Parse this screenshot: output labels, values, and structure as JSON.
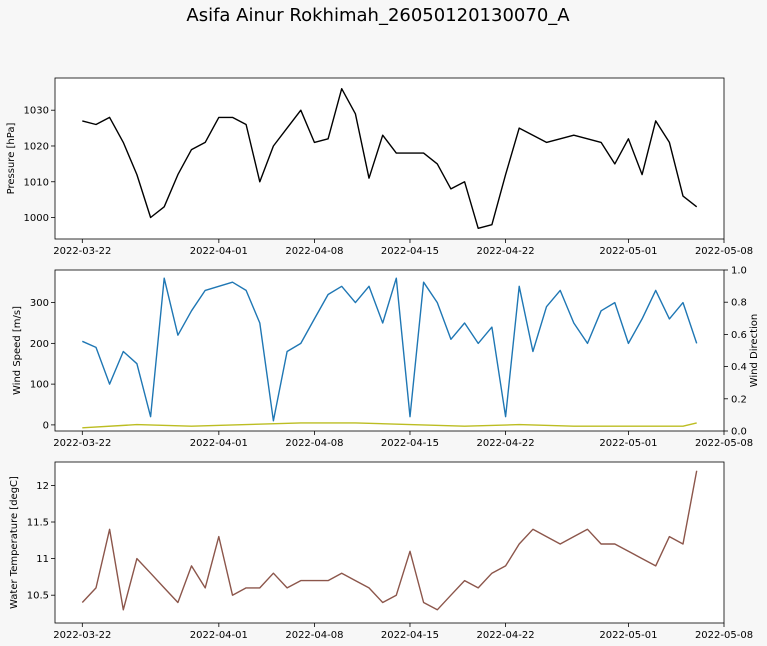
{
  "figure": {
    "title": "Asifa Ainur Rokhimah_26050120130070_A"
  },
  "chart_data": [
    {
      "type": "line",
      "ylabel": "Pressure [hPa]",
      "xlabel": "",
      "xlim": [
        "2022-03-20",
        "2022-05-08"
      ],
      "ylim": [
        994,
        1039
      ],
      "xticks": [
        "2022-03-22",
        "2022-04-01",
        "2022-04-08",
        "2022-04-15",
        "2022-04-22",
        "2022-05-01",
        "2022-05-08"
      ],
      "yticks": [
        1000,
        1010,
        1020,
        1030
      ],
      "grid": false,
      "series": [
        {
          "color": "#000000",
          "x": [
            "2022-03-22",
            "2022-03-23",
            "2022-03-24",
            "2022-03-25",
            "2022-03-26",
            "2022-03-27",
            "2022-03-28",
            "2022-03-29",
            "2022-03-30",
            "2022-03-31",
            "2022-04-01",
            "2022-04-02",
            "2022-04-03",
            "2022-04-04",
            "2022-04-05",
            "2022-04-06",
            "2022-04-07",
            "2022-04-08",
            "2022-04-09",
            "2022-04-10",
            "2022-04-11",
            "2022-04-12",
            "2022-04-13",
            "2022-04-14",
            "2022-04-15",
            "2022-04-16",
            "2022-04-17",
            "2022-04-18",
            "2022-04-19",
            "2022-04-20",
            "2022-04-21",
            "2022-04-22",
            "2022-04-23",
            "2022-04-24",
            "2022-04-25",
            "2022-04-26",
            "2022-04-27",
            "2022-04-28",
            "2022-04-29",
            "2022-04-30",
            "2022-05-01",
            "2022-05-02",
            "2022-05-03",
            "2022-05-04",
            "2022-05-05",
            "2022-05-06"
          ],
          "y": [
            1027,
            1026,
            1028,
            1021,
            1012,
            1000,
            1003,
            1012,
            1019,
            1021,
            1028,
            1028,
            1026,
            1010,
            1020,
            1025,
            1030,
            1021,
            1022,
            1036,
            1029,
            1011,
            1023,
            1018,
            1018,
            1018,
            1015,
            1008,
            1010,
            997,
            998,
            1012,
            1025,
            1023,
            1021,
            1022,
            1023,
            1022,
            1021,
            1015,
            1022,
            1012,
            1027,
            1021,
            1006,
            1003
          ]
        }
      ]
    },
    {
      "type": "line",
      "ylabel": "Wind Speed [m/s]",
      "y2label": "Wind Direction",
      "xlabel": "",
      "xlim": [
        "2022-03-20",
        "2022-05-08"
      ],
      "ylim": [
        -15,
        380
      ],
      "y2lim": [
        0,
        1
      ],
      "xticks": [
        "2022-03-22",
        "2022-04-01",
        "2022-04-08",
        "2022-04-15",
        "2022-04-22",
        "2022-05-01",
        "2022-05-08"
      ],
      "yticks": [
        0,
        100,
        200,
        300
      ],
      "y2ticks": [
        0.0,
        0.2,
        0.4,
        0.6,
        0.8,
        1.0
      ],
      "grid": false,
      "series": [
        {
          "color": "#1f77b4",
          "x": [
            "2022-03-22",
            "2022-03-23",
            "2022-03-24",
            "2022-03-25",
            "2022-03-26",
            "2022-03-27",
            "2022-03-28",
            "2022-03-29",
            "2022-03-30",
            "2022-03-31",
            "2022-04-01",
            "2022-04-02",
            "2022-04-03",
            "2022-04-04",
            "2022-04-05",
            "2022-04-06",
            "2022-04-07",
            "2022-04-08",
            "2022-04-09",
            "2022-04-10",
            "2022-04-11",
            "2022-04-12",
            "2022-04-13",
            "2022-04-14",
            "2022-04-15",
            "2022-04-16",
            "2022-04-17",
            "2022-04-18",
            "2022-04-19",
            "2022-04-20",
            "2022-04-21",
            "2022-04-22",
            "2022-04-23",
            "2022-04-24",
            "2022-04-25",
            "2022-04-26",
            "2022-04-27",
            "2022-04-28",
            "2022-04-29",
            "2022-04-30",
            "2022-05-01",
            "2022-05-02",
            "2022-05-03",
            "2022-05-04",
            "2022-05-05",
            "2022-05-06"
          ],
          "y": [
            205,
            190,
            100,
            180,
            150,
            20,
            360,
            220,
            280,
            330,
            340,
            350,
            330,
            250,
            10,
            180,
            200,
            260,
            320,
            340,
            300,
            340,
            250,
            360,
            20,
            350,
            300,
            210,
            250,
            200,
            240,
            20,
            340,
            180,
            290,
            330,
            250,
            200,
            280,
            300,
            200,
            260,
            330,
            260,
            300,
            200
          ]
        },
        {
          "color": "#bcbd22",
          "axis": "y2",
          "x": [
            "2022-03-22",
            "2022-03-26",
            "2022-03-30",
            "2022-04-03",
            "2022-04-07",
            "2022-04-11",
            "2022-04-15",
            "2022-04-19",
            "2022-04-23",
            "2022-04-27",
            "2022-05-01",
            "2022-05-05",
            "2022-05-06"
          ],
          "y": [
            0.02,
            0.04,
            0.03,
            0.04,
            0.05,
            0.05,
            0.04,
            0.03,
            0.04,
            0.03,
            0.03,
            0.03,
            0.05
          ]
        }
      ]
    },
    {
      "type": "line",
      "ylabel": "Water Temperature [degC]",
      "xlabel": "",
      "xlim": [
        "2022-03-20",
        "2022-05-08"
      ],
      "ylim": [
        10.12,
        12.32
      ],
      "xticks": [
        "2022-03-22",
        "2022-04-01",
        "2022-04-08",
        "2022-04-15",
        "2022-04-22",
        "2022-05-01",
        "2022-05-08"
      ],
      "yticks": [
        10.5,
        11.0,
        11.5,
        12.0
      ],
      "grid": false,
      "series": [
        {
          "color": "#8c564b",
          "x": [
            "2022-03-22",
            "2022-03-23",
            "2022-03-24",
            "2022-03-25",
            "2022-03-26",
            "2022-03-27",
            "2022-03-28",
            "2022-03-29",
            "2022-03-30",
            "2022-03-31",
            "2022-04-01",
            "2022-04-02",
            "2022-04-03",
            "2022-04-04",
            "2022-04-05",
            "2022-04-06",
            "2022-04-07",
            "2022-04-08",
            "2022-04-09",
            "2022-04-10",
            "2022-04-11",
            "2022-04-12",
            "2022-04-13",
            "2022-04-14",
            "2022-04-15",
            "2022-04-16",
            "2022-04-17",
            "2022-04-18",
            "2022-04-19",
            "2022-04-20",
            "2022-04-21",
            "2022-04-22",
            "2022-04-23",
            "2022-04-24",
            "2022-04-25",
            "2022-04-26",
            "2022-04-27",
            "2022-04-28",
            "2022-04-29",
            "2022-04-30",
            "2022-05-01",
            "2022-05-02",
            "2022-05-03",
            "2022-05-04",
            "2022-05-05",
            "2022-05-06"
          ],
          "y": [
            10.4,
            10.6,
            11.4,
            10.3,
            11.0,
            10.8,
            10.6,
            10.4,
            10.9,
            10.6,
            11.3,
            10.5,
            10.6,
            10.6,
            10.8,
            10.6,
            10.7,
            10.7,
            10.7,
            10.8,
            10.7,
            10.6,
            10.4,
            10.5,
            11.1,
            10.4,
            10.3,
            10.5,
            10.7,
            10.6,
            10.8,
            10.9,
            11.2,
            11.4,
            11.3,
            11.2,
            11.3,
            11.4,
            11.2,
            11.2,
            11.1,
            11.0,
            10.9,
            11.3,
            11.2,
            12.2
          ]
        }
      ]
    }
  ]
}
